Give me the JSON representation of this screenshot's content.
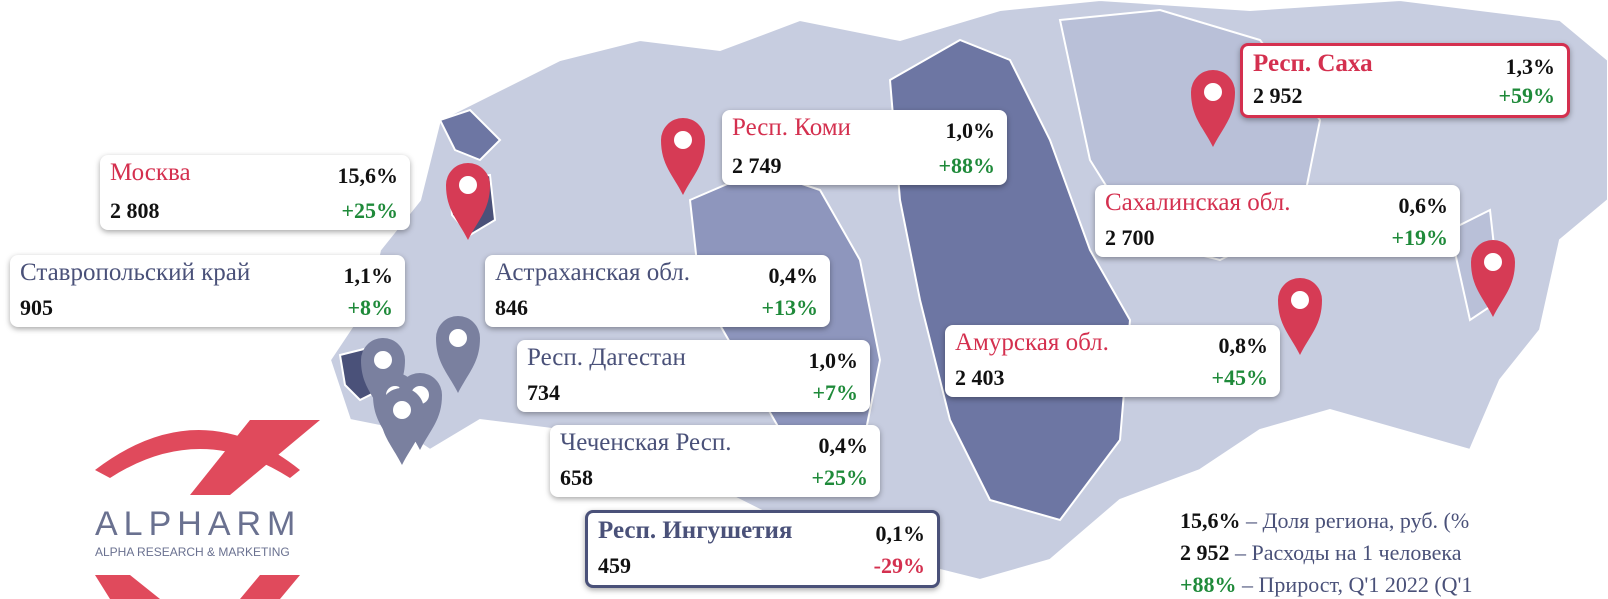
{
  "regions": [
    {
      "name": "Москва",
      "share": "15,6%",
      "spend": "2 808",
      "growth": "+25%"
    },
    {
      "name": "Ставропольский край",
      "share": "1,1%",
      "spend": "905",
      "growth": "+8%"
    },
    {
      "name": "Респ. Коми",
      "share": "1,0%",
      "spend": "2 749",
      "growth": "+88%"
    },
    {
      "name": "Астраханская обл.",
      "share": "0,4%",
      "spend": "846",
      "growth": "+13%"
    },
    {
      "name": "Респ. Дагестан",
      "share": "1,0%",
      "spend": "734",
      "growth": "+7%"
    },
    {
      "name": "Чеченская Респ.",
      "share": "0,4%",
      "spend": "658",
      "growth": "+25%"
    },
    {
      "name": "Респ. Ингушетия",
      "share": "0,1%",
      "spend": "459",
      "growth": "-29%"
    },
    {
      "name": "Респ. Саха",
      "share": "1,3%",
      "spend": "2 952",
      "growth": "+59%"
    },
    {
      "name": "Сахалинская обл.",
      "share": "0,6%",
      "spend": "2 700",
      "growth": "+19%"
    },
    {
      "name": "Амурская обл.",
      "share": "0,8%",
      "spend": "2 403",
      "growth": "+45%"
    }
  ],
  "legend": [
    {
      "value": "15,6%",
      "label": "– Доля региона, руб. (%"
    },
    {
      "value": "2 952",
      "label": "– Расходы на 1 человека"
    },
    {
      "value": "+88%",
      "label": "– Прирост, Q'1 2022 (Q'1"
    }
  ],
  "logo": {
    "title": "ALPHARM",
    "subtitle": "ALPHA RESEARCH & MARKETING"
  }
}
